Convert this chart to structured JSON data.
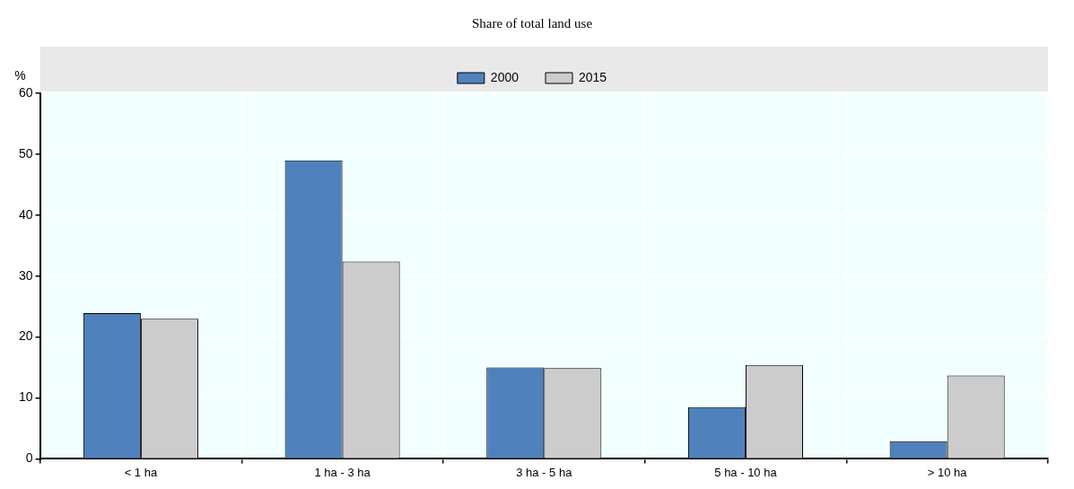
{
  "chart_data": {
    "type": "bar",
    "title": "Share of total land use",
    "ylabel": "%",
    "categories": [
      "< 1 ha",
      "1 ha - 3 ha",
      "3 ha - 5 ha",
      "5 ha - 10 ha",
      "> 10 ha"
    ],
    "series": [
      {
        "name": "2000",
        "color": "#4f81bd",
        "values": [
          23.9,
          49.0,
          15.0,
          8.5,
          2.9
        ]
      },
      {
        "name": "2015",
        "color": "#cccccc",
        "values": [
          23.0,
          32.4,
          14.9,
          15.4,
          13.7
        ]
      }
    ],
    "ylim": [
      0,
      60
    ],
    "yticks": [
      0,
      10,
      20,
      30,
      40,
      50,
      60
    ],
    "grid": true,
    "legend": "top"
  }
}
